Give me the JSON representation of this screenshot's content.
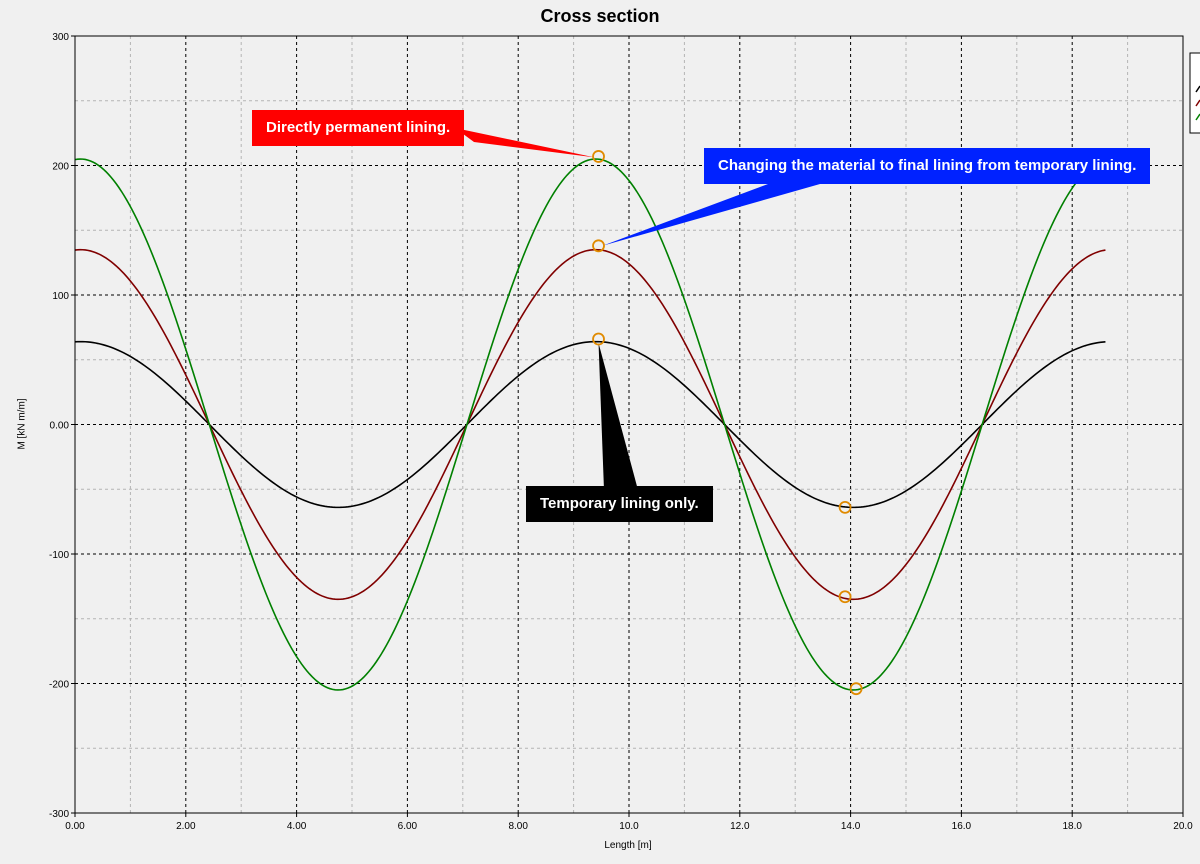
{
  "chart_data": {
    "type": "line",
    "title": "Cross section",
    "xlabel": "Length [m]",
    "ylabel": "M [kN m/m]",
    "xlim": [
      0,
      20
    ],
    "ylim": [
      -300,
      300
    ],
    "x_ticks": [
      "0.00",
      "2.00",
      "4.00",
      "6.00",
      "8.00",
      "10.0",
      "12.0",
      "14.0",
      "16.0",
      "18.0",
      "20.0"
    ],
    "y_ticks": [
      "300",
      "200",
      "100",
      "0.00",
      "-100",
      "-200",
      "-300"
    ],
    "grid": true,
    "legend_position": "top-right (clipped)",
    "x_end": 18.6,
    "wave_period": 9.3,
    "series": [
      {
        "color": "#000000",
        "amplitude": 64,
        "peak_x": 9.4
      },
      {
        "color": "#800000",
        "amplitude": 135,
        "peak_x": 9.4
      },
      {
        "color": "#008000",
        "amplitude": 205,
        "peak_x": 9.4
      }
    ],
    "markers": [
      {
        "x": 9.45,
        "y": 207
      },
      {
        "x": 9.45,
        "y": 138
      },
      {
        "x": 9.45,
        "y": 66
      },
      {
        "x": 13.9,
        "y": -64
      },
      {
        "x": 13.9,
        "y": -133
      },
      {
        "x": 14.1,
        "y": -204
      }
    ],
    "annotations": [
      {
        "text": "Directly permanent lining.",
        "bg": "#ff0000",
        "color": "#ffffff",
        "target_x": 9.45,
        "target_y": 207
      },
      {
        "text": "Changing the material to final lining from temporary lining.",
        "bg": "#0022ff",
        "color": "#ffffff",
        "target_x": 9.45,
        "target_y": 138
      },
      {
        "text": "Temporary lining only.",
        "bg": "#000000",
        "color": "#ffffff",
        "target_x": 9.45,
        "target_y": 66
      }
    ]
  }
}
